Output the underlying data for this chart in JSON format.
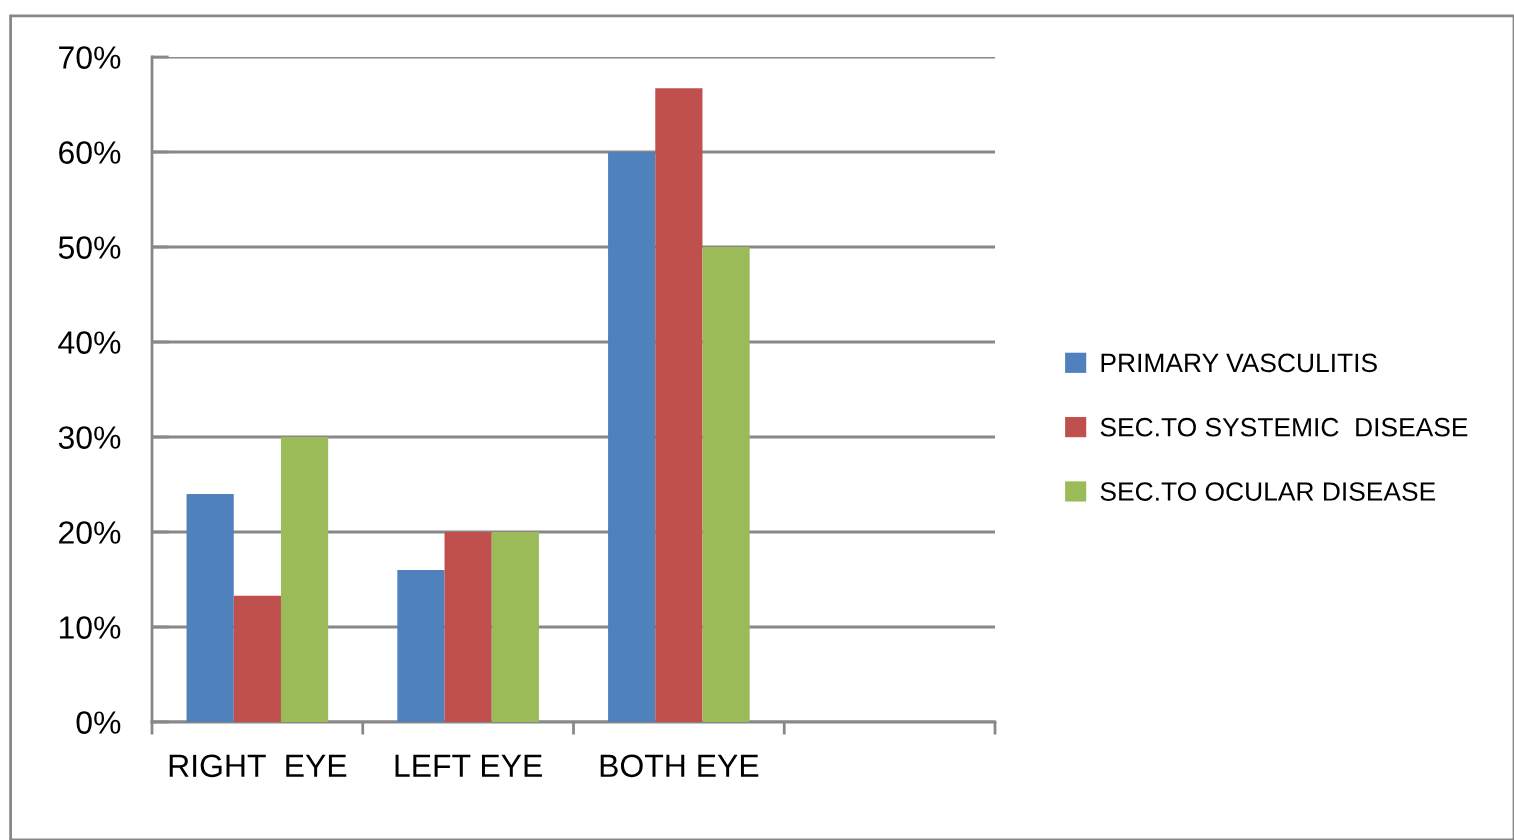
{
  "chart_data": {
    "type": "bar",
    "categories": [
      "RIGHT  EYE",
      "LEFT EYE",
      "BOTH EYE",
      null
    ],
    "series": [
      {
        "name": "PRIMARY VASCULITIS",
        "color": "#4f81bd",
        "values": [
          24,
          16,
          60,
          null
        ]
      },
      {
        "name": "SEC.TO SYSTEMIC  DISEASE",
        "color": "#c0504d",
        "values": [
          13.3,
          20,
          66.7,
          null
        ]
      },
      {
        "name": "SEC.TO OCULAR DISEASE",
        "color": "#9bbb59",
        "values": [
          30,
          20,
          50,
          null
        ]
      }
    ],
    "ylim": [
      0,
      70
    ],
    "yticks": [
      {
        "value": 0,
        "label": "0%"
      },
      {
        "value": 10,
        "label": "10%"
      },
      {
        "value": 20,
        "label": "20%"
      },
      {
        "value": 30,
        "label": "30%"
      },
      {
        "value": 40,
        "label": "40%"
      },
      {
        "value": 50,
        "label": "50%"
      },
      {
        "value": 60,
        "label": "60%"
      },
      {
        "value": 70,
        "label": "70%"
      }
    ],
    "grid": "y",
    "legend": "right"
  }
}
